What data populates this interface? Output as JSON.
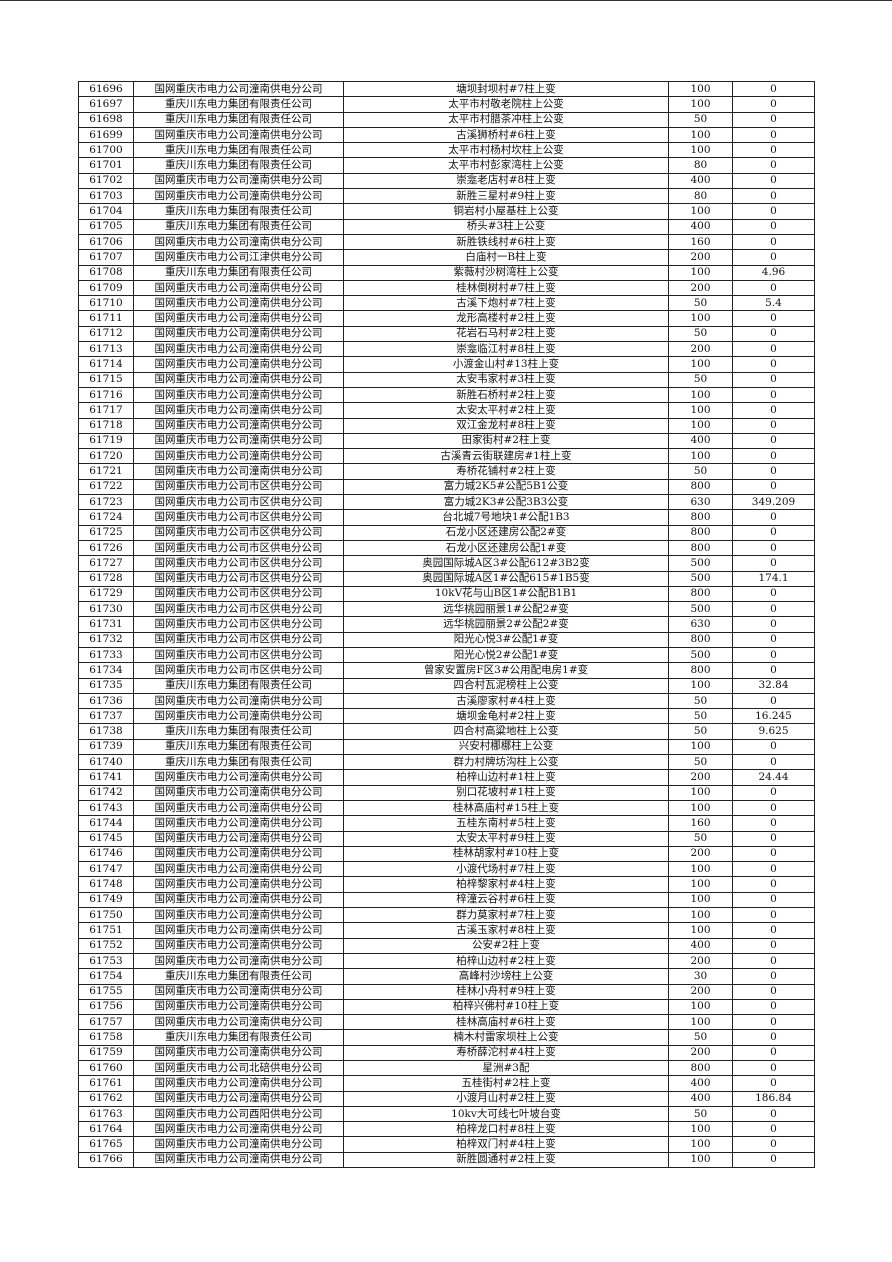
{
  "rows": [
    [
      "61696",
      "国网重庆市电力公司潼南供电分公司",
      "塘坝封坝村#7柱上变",
      "100",
      "0"
    ],
    [
      "61697",
      "重庆川东电力集团有限责任公司",
      "太平市村敬老院柱上公变",
      "100",
      "0"
    ],
    [
      "61698",
      "重庆川东电力集团有限责任公司",
      "太平市村腊茶冲柱上公变",
      "50",
      "0"
    ],
    [
      "61699",
      "国网重庆市电力公司潼南供电分公司",
      "古溪狮桥村#6柱上变",
      "100",
      "0"
    ],
    [
      "61700",
      "重庆川东电力集团有限责任公司",
      "太平市村杨村坎柱上公变",
      "100",
      "0"
    ],
    [
      "61701",
      "重庆川东电力集团有限责任公司",
      "太平市村彭家湾柱上公变",
      "80",
      "0"
    ],
    [
      "61702",
      "国网重庆市电力公司潼南供电分公司",
      "崇龛老店村#8柱上变",
      "400",
      "0"
    ],
    [
      "61703",
      "国网重庆市电力公司潼南供电分公司",
      "新胜三星村#9柱上变",
      "80",
      "0"
    ],
    [
      "61704",
      "重庆川东电力集团有限责任公司",
      "铜岩村小屋基柱上公变",
      "100",
      "0"
    ],
    [
      "61705",
      "重庆川东电力集团有限责任公司",
      "桥头#3柱上公变",
      "400",
      "0"
    ],
    [
      "61706",
      "国网重庆市电力公司潼南供电分公司",
      "新胜铁线村#6柱上变",
      "160",
      "0"
    ],
    [
      "61707",
      "国网重庆市电力公司江津供电分公司",
      "白庙村一B柱上变",
      "200",
      "0"
    ],
    [
      "61708",
      "重庆川东电力集团有限责任公司",
      "紫薇村沙树湾柱上公变",
      "100",
      "4.96"
    ],
    [
      "61709",
      "国网重庆市电力公司潼南供电分公司",
      "桂林倒树村#7柱上变",
      "200",
      "0"
    ],
    [
      "61710",
      "国网重庆市电力公司潼南供电分公司",
      "古溪下炮村#7柱上变",
      "50",
      "5.4"
    ],
    [
      "61711",
      "国网重庆市电力公司潼南供电分公司",
      "龙形高楼村#2柱上变",
      "100",
      "0"
    ],
    [
      "61712",
      "国网重庆市电力公司潼南供电分公司",
      "花岩石马村#2柱上变",
      "50",
      "0"
    ],
    [
      "61713",
      "国网重庆市电力公司潼南供电分公司",
      "崇龛临江村#8柱上变",
      "200",
      "0"
    ],
    [
      "61714",
      "国网重庆市电力公司潼南供电分公司",
      "小渡金山村#13柱上变",
      "100",
      "0"
    ],
    [
      "61715",
      "国网重庆市电力公司潼南供电分公司",
      "太安韦家村#3柱上变",
      "50",
      "0"
    ],
    [
      "61716",
      "国网重庆市电力公司潼南供电分公司",
      "新胜石桥村#2柱上变",
      "100",
      "0"
    ],
    [
      "61717",
      "国网重庆市电力公司潼南供电分公司",
      "太安太平村#2柱上变",
      "100",
      "0"
    ],
    [
      "61718",
      "国网重庆市电力公司潼南供电分公司",
      "双江金龙村#8柱上变",
      "100",
      "0"
    ],
    [
      "61719",
      "国网重庆市电力公司潼南供电分公司",
      "田家街村#2柱上变",
      "400",
      "0"
    ],
    [
      "61720",
      "国网重庆市电力公司潼南供电分公司",
      "古溪青云街联建房#1柱上变",
      "100",
      "0"
    ],
    [
      "61721",
      "国网重庆市电力公司潼南供电分公司",
      "寿桥花铺村#2柱上变",
      "50",
      "0"
    ],
    [
      "61722",
      "国网重庆市电力公司市区供电分公司",
      "富力城2K5#公配5B1公变",
      "800",
      "0"
    ],
    [
      "61723",
      "国网重庆市电力公司市区供电分公司",
      "富力城2K3#公配3B3公变",
      "630",
      "349.209"
    ],
    [
      "61724",
      "国网重庆市电力公司市区供电分公司",
      "台北城7号地块1#公配1B3",
      "800",
      "0"
    ],
    [
      "61725",
      "国网重庆市电力公司市区供电分公司",
      "石龙小区还建房公配2#变",
      "800",
      "0"
    ],
    [
      "61726",
      "国网重庆市电力公司市区供电分公司",
      "石龙小区还建房公配1#变",
      "800",
      "0"
    ],
    [
      "61727",
      "国网重庆市电力公司市区供电分公司",
      "奥园国际城A区3#公配612#3B2变",
      "500",
      "0"
    ],
    [
      "61728",
      "国网重庆市电力公司市区供电分公司",
      "奥园国际城A区1#公配615#1B5变",
      "500",
      "174.1"
    ],
    [
      "61729",
      "国网重庆市电力公司市区供电分公司",
      "10kV花与山B区1#公配B1B1",
      "800",
      "0"
    ],
    [
      "61730",
      "国网重庆市电力公司市区供电分公司",
      "远华桃园丽景1#公配2#变",
      "500",
      "0"
    ],
    [
      "61731",
      "国网重庆市电力公司市区供电分公司",
      "远华桃园丽景2#公配2#变",
      "630",
      "0"
    ],
    [
      "61732",
      "国网重庆市电力公司市区供电分公司",
      "阳光心悦3#公配1#变",
      "800",
      "0"
    ],
    [
      "61733",
      "国网重庆市电力公司市区供电分公司",
      "阳光心悦2#公配1#变",
      "500",
      "0"
    ],
    [
      "61734",
      "国网重庆市电力公司市区供电分公司",
      "曾家安置房F区3#公用配电房1#变",
      "800",
      "0"
    ],
    [
      "61735",
      "重庆川东电力集团有限责任公司",
      "四合村瓦泥榜柱上公变",
      "100",
      "32.84"
    ],
    [
      "61736",
      "国网重庆市电力公司潼南供电分公司",
      "古溪廖家村#4柱上变",
      "50",
      "0"
    ],
    [
      "61737",
      "国网重庆市电力公司潼南供电分公司",
      "塘坝金龟村#2柱上变",
      "50",
      "16.245"
    ],
    [
      "61738",
      "重庆川东电力集团有限责任公司",
      "四合村高粱地柱上公变",
      "50",
      "9.625"
    ],
    [
      "61739",
      "重庆川东电力集团有限责任公司",
      "兴安村梛梛柱上公变",
      "100",
      "0"
    ],
    [
      "61740",
      "重庆川东电力集团有限责任公司",
      "群力村牌坊沟柱上公变",
      "50",
      "0"
    ],
    [
      "61741",
      "国网重庆市电力公司潼南供电分公司",
      "柏梓山边村#1柱上变",
      "200",
      "24.44"
    ],
    [
      "61742",
      "国网重庆市电力公司潼南供电分公司",
      "别口花坡村#1柱上变",
      "100",
      "0"
    ],
    [
      "61743",
      "国网重庆市电力公司潼南供电分公司",
      "桂林高庙村#15柱上变",
      "100",
      "0"
    ],
    [
      "61744",
      "国网重庆市电力公司潼南供电分公司",
      "五桂东南村#5柱上变",
      "160",
      "0"
    ],
    [
      "61745",
      "国网重庆市电力公司潼南供电分公司",
      "太安太平村#9柱上变",
      "50",
      "0"
    ],
    [
      "61746",
      "国网重庆市电力公司潼南供电分公司",
      "桂林胡家村#10柱上变",
      "200",
      "0"
    ],
    [
      "61747",
      "国网重庆市电力公司潼南供电分公司",
      "小渡代场村#7柱上变",
      "100",
      "0"
    ],
    [
      "61748",
      "国网重庆市电力公司潼南供电分公司",
      "柏梓黎家村#4柱上变",
      "100",
      "0"
    ],
    [
      "61749",
      "国网重庆市电力公司潼南供电分公司",
      "梓潼云谷村#6柱上变",
      "100",
      "0"
    ],
    [
      "61750",
      "国网重庆市电力公司潼南供电分公司",
      "群力莫家村#7柱上变",
      "100",
      "0"
    ],
    [
      "61751",
      "国网重庆市电力公司潼南供电分公司",
      "古溪玉家村#8柱上变",
      "100",
      "0"
    ],
    [
      "61752",
      "国网重庆市电力公司潼南供电分公司",
      "公安#2柱上变",
      "400",
      "0"
    ],
    [
      "61753",
      "国网重庆市电力公司潼南供电分公司",
      "柏梓山边村#2柱上变",
      "200",
      "0"
    ],
    [
      "61754",
      "重庆川东电力集团有限责任公司",
      "高峰村沙塝柱上公变",
      "30",
      "0"
    ],
    [
      "61755",
      "国网重庆市电力公司潼南供电分公司",
      "桂林小舟村#9柱上变",
      "200",
      "0"
    ],
    [
      "61756",
      "国网重庆市电力公司潼南供电分公司",
      "柏梓兴佛村#10柱上变",
      "100",
      "0"
    ],
    [
      "61757",
      "国网重庆市电力公司潼南供电分公司",
      "桂林高庙村#6柱上变",
      "100",
      "0"
    ],
    [
      "61758",
      "重庆川东电力集团有限责任公司",
      "楠木村雷家坝柱上公变",
      "50",
      "0"
    ],
    [
      "61759",
      "国网重庆市电力公司潼南供电分公司",
      "寿桥薛沱村#4柱上变",
      "200",
      "0"
    ],
    [
      "61760",
      "国网重庆市电力公司北碚供电分公司",
      "星洲#3配",
      "800",
      "0"
    ],
    [
      "61761",
      "国网重庆市电力公司潼南供电分公司",
      "五桂街村#2柱上变",
      "400",
      "0"
    ],
    [
      "61762",
      "国网重庆市电力公司潼南供电分公司",
      "小渡月山村#2柱上变",
      "400",
      "186.84"
    ],
    [
      "61763",
      "国网重庆市电力公司酉阳供电分公司",
      "10kv大可线七叶坡台变",
      "50",
      "0"
    ],
    [
      "61764",
      "国网重庆市电力公司潼南供电分公司",
      "柏梓龙口村#8柱上变",
      "100",
      "0"
    ],
    [
      "61765",
      "国网重庆市电力公司潼南供电分公司",
      "柏梓双门村#4柱上变",
      "100",
      "0"
    ],
    [
      "61766",
      "国网重庆市电力公司潼南供电分公司",
      "新胜圆通村#2柱上变",
      "100",
      "0"
    ]
  ]
}
